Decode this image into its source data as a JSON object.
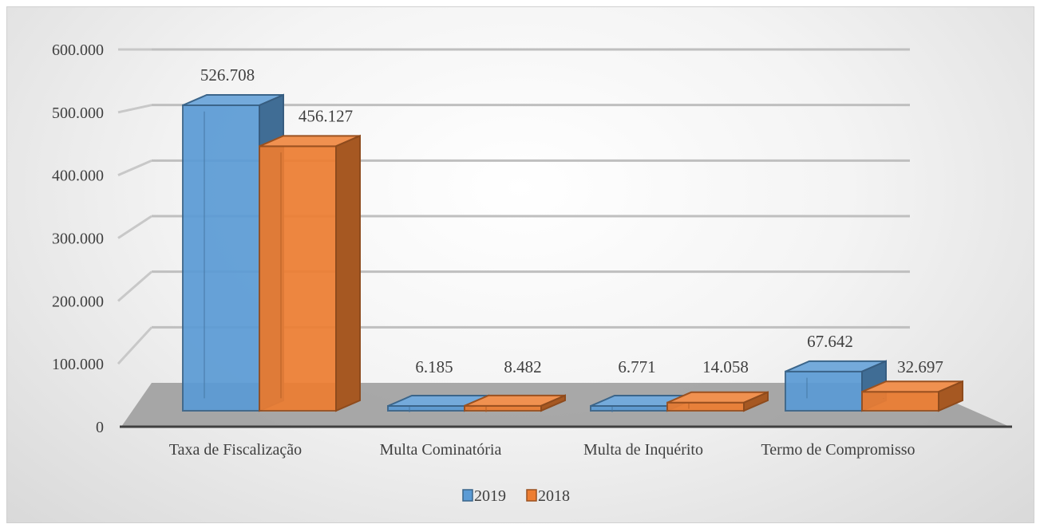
{
  "chart_data": {
    "type": "bar",
    "title": "",
    "xlabel": "",
    "ylabel": "",
    "ylim": [
      0,
      600000
    ],
    "yticks": [
      0,
      100000,
      200000,
      300000,
      400000,
      500000,
      600000
    ],
    "ytick_labels": [
      "0",
      "100.000",
      "200.000",
      "300.000",
      "400.000",
      "500.000",
      "600.000"
    ],
    "categories": [
      "Taxa de Fiscalização",
      "Multa Cominatória",
      "Multa de Inquérito",
      "Termo de Compromisso"
    ],
    "series": [
      {
        "name": "2019",
        "color": "#5b9bd5",
        "values": [
          526708,
          6185,
          6771,
          67642
        ],
        "labels": [
          "526.708",
          "6.185",
          "6.771",
          "67.642"
        ]
      },
      {
        "name": "2018",
        "color": "#ed7d31",
        "values": [
          456127,
          8482,
          14058,
          32697
        ],
        "labels": [
          "456.127",
          "8.482",
          "14.058",
          "32.697"
        ]
      }
    ],
    "grid": true,
    "legend_position": "bottom",
    "style": "3d-clustered-column"
  }
}
